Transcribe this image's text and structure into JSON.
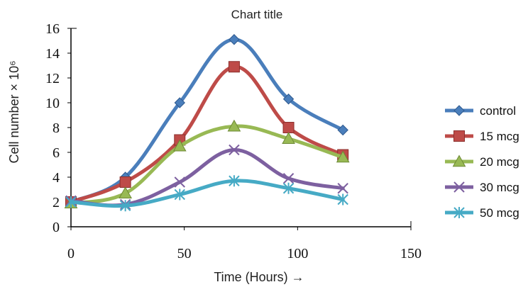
{
  "chart_data": {
    "type": "line",
    "title": "Chart title",
    "xlabel": "Time (Hours) →",
    "ylabel": "Cell number × 10⁶",
    "x": [
      0,
      24,
      48,
      72,
      96,
      120
    ],
    "xlim": [
      0,
      150
    ],
    "ylim": [
      0,
      16
    ],
    "x_ticks": [
      0,
      50,
      100,
      150
    ],
    "y_ticks": [
      0,
      2,
      4,
      6,
      8,
      10,
      12,
      14,
      16
    ],
    "legend_position": "right",
    "grid": false,
    "series": [
      {
        "name": "control",
        "color": "#4a7ebb",
        "marker": "diamond",
        "values": [
          2.0,
          4.0,
          10.0,
          15.1,
          10.3,
          7.8
        ]
      },
      {
        "name": "15 mcg",
        "color": "#be4b48",
        "marker": "square",
        "values": [
          2.0,
          3.6,
          7.0,
          12.9,
          8.0,
          5.8
        ]
      },
      {
        "name": "20 mcg",
        "color": "#98b954",
        "marker": "triangle",
        "values": [
          1.9,
          2.7,
          6.5,
          8.1,
          7.1,
          5.6
        ]
      },
      {
        "name": "30 mcg",
        "color": "#7d60a0",
        "marker": "x",
        "values": [
          2.1,
          1.8,
          3.6,
          6.2,
          3.9,
          3.1
        ]
      },
      {
        "name": "50 mcg",
        "color": "#46aac5",
        "marker": "star",
        "values": [
          2.0,
          1.7,
          2.6,
          3.7,
          3.1,
          2.2
        ]
      }
    ]
  }
}
